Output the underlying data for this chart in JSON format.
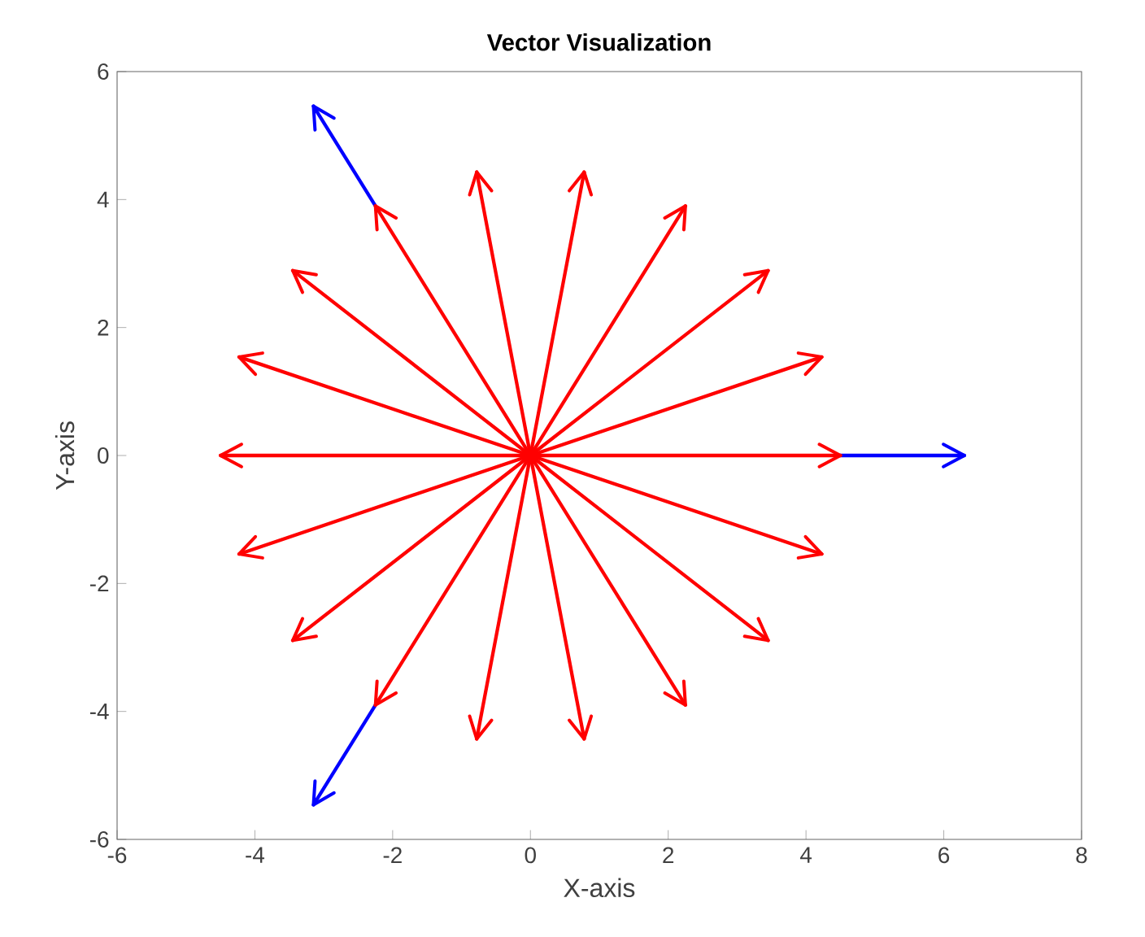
{
  "chart_data": {
    "type": "line",
    "title": "Vector Visualization",
    "xlabel": "X-axis",
    "ylabel": "Y-axis",
    "xlim": [
      -6,
      8
    ],
    "ylim": [
      -6,
      6
    ],
    "xticks": [
      -6,
      -4,
      -2,
      0,
      2,
      4,
      6,
      8
    ],
    "yticks": [
      -6,
      -4,
      -2,
      0,
      2,
      4,
      6
    ],
    "grid": false,
    "marker": "none",
    "line_style": "solid",
    "series": [
      {
        "color": "#0000ff",
        "x": [
          4.5,
          6.3
        ],
        "values": [
          0,
          0
        ]
      },
      {
        "color": "#0000ff",
        "x": [
          -2.25,
          -3.15
        ],
        "values": [
          3.9,
          5.46
        ]
      },
      {
        "color": "#0000ff",
        "x": [
          -2.25,
          -3.15
        ],
        "values": [
          -3.9,
          -5.46
        ]
      },
      {
        "color": "#ff0000",
        "x": [
          0,
          4.5
        ],
        "values": [
          0,
          0
        ]
      },
      {
        "color": "#ff0000",
        "x": [
          0,
          4.23
        ],
        "values": [
          0,
          1.54
        ]
      },
      {
        "color": "#ff0000",
        "x": [
          0,
          3.45
        ],
        "values": [
          0,
          2.89
        ]
      },
      {
        "color": "#ff0000",
        "x": [
          0,
          2.25
        ],
        "values": [
          0,
          3.9
        ]
      },
      {
        "color": "#ff0000",
        "x": [
          0,
          0.78
        ],
        "values": [
          0,
          4.43
        ]
      },
      {
        "color": "#ff0000",
        "x": [
          0,
          -0.78
        ],
        "values": [
          0,
          4.43
        ]
      },
      {
        "color": "#ff0000",
        "x": [
          0,
          -2.25
        ],
        "values": [
          0,
          3.9
        ]
      },
      {
        "color": "#ff0000",
        "x": [
          0,
          -3.45
        ],
        "values": [
          0,
          2.89
        ]
      },
      {
        "color": "#ff0000",
        "x": [
          0,
          -4.23
        ],
        "values": [
          0,
          1.54
        ]
      },
      {
        "color": "#ff0000",
        "x": [
          0,
          -4.5
        ],
        "values": [
          0,
          0
        ]
      },
      {
        "color": "#ff0000",
        "x": [
          0,
          -4.23
        ],
        "values": [
          0,
          -1.54
        ]
      },
      {
        "color": "#ff0000",
        "x": [
          0,
          -3.45
        ],
        "values": [
          0,
          -2.89
        ]
      },
      {
        "color": "#ff0000",
        "x": [
          0,
          -2.25
        ],
        "values": [
          0,
          -3.9
        ]
      },
      {
        "color": "#ff0000",
        "x": [
          0,
          -0.78
        ],
        "values": [
          0,
          -4.43
        ]
      },
      {
        "color": "#ff0000",
        "x": [
          0,
          0.78
        ],
        "values": [
          0,
          -4.43
        ]
      },
      {
        "color": "#ff0000",
        "x": [
          0,
          2.25
        ],
        "values": [
          0,
          -3.9
        ]
      },
      {
        "color": "#ff0000",
        "x": [
          0,
          3.45
        ],
        "values": [
          0,
          -2.89
        ]
      },
      {
        "color": "#ff0000",
        "x": [
          0,
          4.23
        ],
        "values": [
          0,
          -1.54
        ]
      }
    ]
  }
}
